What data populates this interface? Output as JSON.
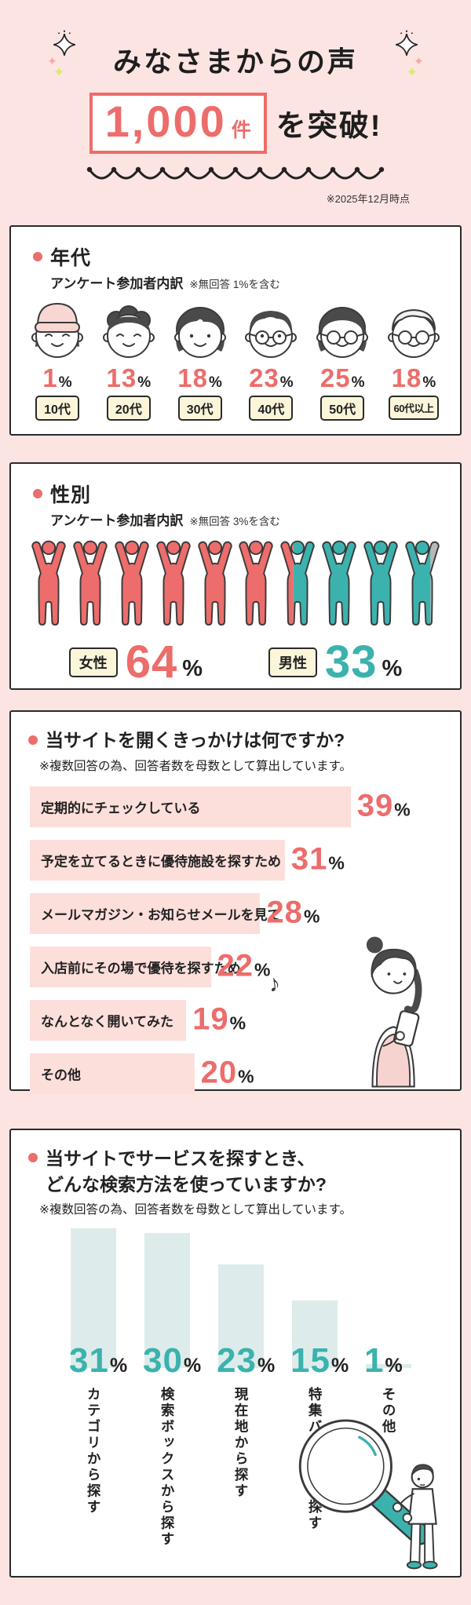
{
  "header": {
    "title": "みなさまからの声",
    "count": "1,000",
    "count_unit": "件",
    "suffix": "を突破!",
    "date_note": "※2025年12月時点"
  },
  "icons": {
    "sparkle": "four-point-star",
    "wave_divider": "scallop-line",
    "music_note": "♪"
  },
  "colors": {
    "background": "#fce4e2",
    "accent_red": "#ec6d6b",
    "accent_teal": "#3cb2ae",
    "bar_pink": "#fcdfdb",
    "bar_mint": "#ddecea",
    "label_cream": "#fbf6da",
    "no_answer_gray": "#b9b9b9"
  },
  "chart_data": [
    {
      "type": "pictograph",
      "title": "年代",
      "subtitle": "アンケート参加者内訳",
      "note": "※無回答 1%を含む",
      "categories": [
        "10代",
        "20代",
        "30代",
        "40代",
        "50代",
        "60代以上"
      ],
      "values": [
        1,
        13,
        18,
        23,
        25,
        18
      ],
      "unit": "%",
      "personas": [
        "teen-beanie",
        "young-curly",
        "woman-bob",
        "man-glasses",
        "woman-glasses",
        "senior-glasses"
      ]
    },
    {
      "type": "pictograph",
      "title": "性別",
      "subtitle": "アンケート参加者内訳",
      "note": "※無回答 3%を含む",
      "categories": [
        "女性",
        "男性"
      ],
      "values": [
        64,
        33
      ],
      "unit": "%",
      "colors": {
        "female": "#ec6d6b",
        "male": "#3cb2ae",
        "none": "#b9b9b9"
      },
      "figures": [
        [
          [
            "female",
            1
          ]
        ],
        [
          [
            "female",
            1
          ]
        ],
        [
          [
            "female",
            1
          ]
        ],
        [
          [
            "female",
            1
          ]
        ],
        [
          [
            "female",
            1
          ]
        ],
        [
          [
            "female",
            1
          ]
        ],
        [
          [
            "female",
            0.4
          ],
          [
            "male",
            0.6
          ]
        ],
        [
          [
            "male",
            1
          ]
        ],
        [
          [
            "male",
            1
          ]
        ],
        [
          [
            "male",
            0.7
          ],
          [
            "none",
            0.3
          ]
        ]
      ]
    },
    {
      "type": "bar",
      "orientation": "horizontal",
      "title": "当サイトを開くきっかけは何ですか?",
      "note": "※複数回答の為、回答者数を母数として算出しています。",
      "categories": [
        "定期的にチェックしている",
        "予定を立てるときに優待施設を探すため",
        "メールマガジン・お知らせメールを見て",
        "入店前にその場で優待を探すため",
        "なんとなく開いてみた",
        "その他"
      ],
      "values": [
        39,
        31,
        28,
        22,
        19,
        20
      ],
      "unit": "%",
      "xlim": [
        0,
        50
      ],
      "grid": false
    },
    {
      "type": "bar",
      "orientation": "vertical",
      "title": "当サイトでサービスを探すとき、どんな検索方法を使っていますか?",
      "title_lines": [
        "当サイトでサービスを探すとき、",
        "どんな検索方法を使っていますか?"
      ],
      "note": "※複数回答の為、回答者数を母数として算出しています。",
      "categories": [
        "カテゴリから探す",
        "検索ボックスから探す",
        "現在地から探す",
        "特集バナーから探す",
        "その他"
      ],
      "values": [
        31,
        30,
        23,
        15,
        1
      ],
      "unit": "%",
      "ylim": [
        0,
        35
      ],
      "grid": false
    }
  ]
}
